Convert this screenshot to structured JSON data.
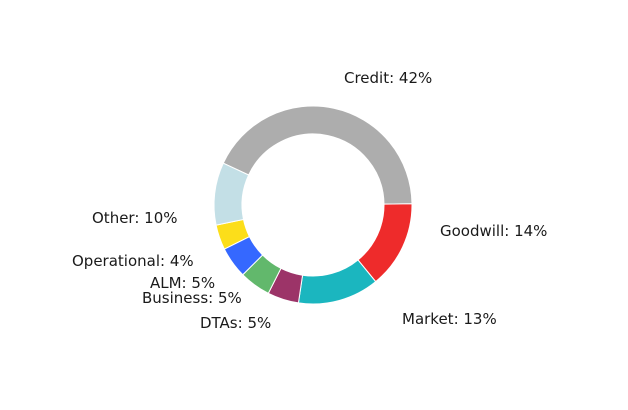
{
  "chart_data": {
    "type": "pie",
    "donut": true,
    "title": "",
    "categories": [
      "Credit",
      "Goodwill",
      "Market",
      "DTAs",
      "Business",
      "ALM",
      "Operational",
      "Other"
    ],
    "values": [
      42,
      14,
      13,
      5,
      5,
      5,
      4,
      10
    ],
    "labels": [
      "Credit: 42%",
      "Goodwill: 14%",
      "Market: 13%",
      "DTAs: 5%",
      "Business: 5%",
      "ALM: 5%",
      "Operational: 4%",
      "Other: 10%"
    ],
    "colors": [
      "#adadad",
      "#ee2b2b",
      "#1bb6bf",
      "#9c3468",
      "#62b86c",
      "#3568ff",
      "#fcde1a",
      "#c3dfe6"
    ],
    "start_angle_deg": -65,
    "direction": "clockwise",
    "legend": "none"
  }
}
